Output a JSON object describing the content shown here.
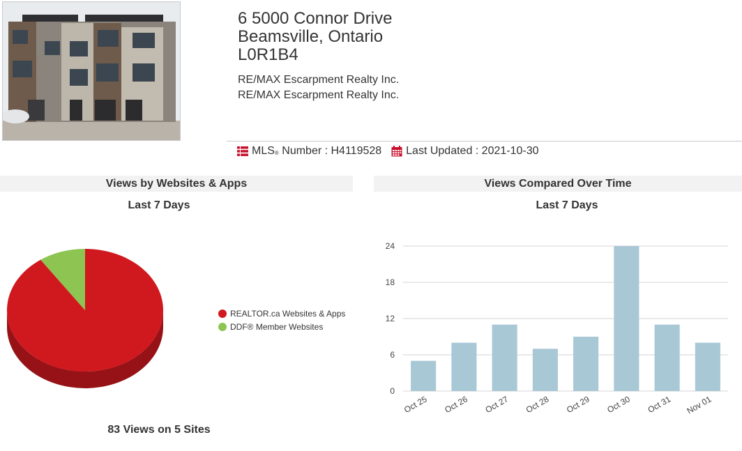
{
  "listing": {
    "address_line1": "6 5000 Connor Drive",
    "address_line2": "Beamsville, Ontario",
    "postal_code": "L0R1B4",
    "brokerage_1": "RE/MAX Escarpment Realty Inc.",
    "brokerage_2": "RE/MAX Escarpment Realty Inc.",
    "mls_label_prefix": "MLS",
    "mls_label_mark": "®",
    "mls_label_suffix": " Number : ",
    "mls_number": "H4119528",
    "last_updated_label": "Last Updated : ",
    "last_updated": "2021-10-30",
    "icons": {
      "mls": "list-icon",
      "updated": "calendar-icon"
    },
    "accent_color": "#c8102e"
  },
  "left_panel": {
    "title": "Views by Websites & Apps",
    "subtitle": "Last 7 Days",
    "summary": "83 Views on 5 Sites"
  },
  "right_panel": {
    "title": "Views Compared Over Time",
    "subtitle": "Last 7 Days"
  },
  "chart_data": [
    {
      "type": "pie",
      "title": "Views by Websites & Apps",
      "subtitle": "Last 7 Days",
      "labels": [
        "REALTOR.ca Websites & Apps",
        "DDF® Member Websites"
      ],
      "values": [
        75,
        8
      ],
      "colors": [
        "#d0191e",
        "#8dc452"
      ],
      "legend": "right",
      "three_d": true
    },
    {
      "type": "bar",
      "title": "Views Compared Over Time",
      "subtitle": "Last 7 Days",
      "categories": [
        "Oct 25",
        "Oct 26",
        "Oct 27",
        "Oct 28",
        "Oct 29",
        "Oct 30",
        "Oct 31",
        "Nov 01"
      ],
      "values": [
        5,
        8,
        11,
        7,
        9,
        24,
        11,
        8
      ],
      "ylim": [
        0,
        24
      ],
      "yticks": [
        0,
        6,
        12,
        18,
        24
      ],
      "grid": true,
      "bar_color": "#a9c8d6"
    }
  ]
}
